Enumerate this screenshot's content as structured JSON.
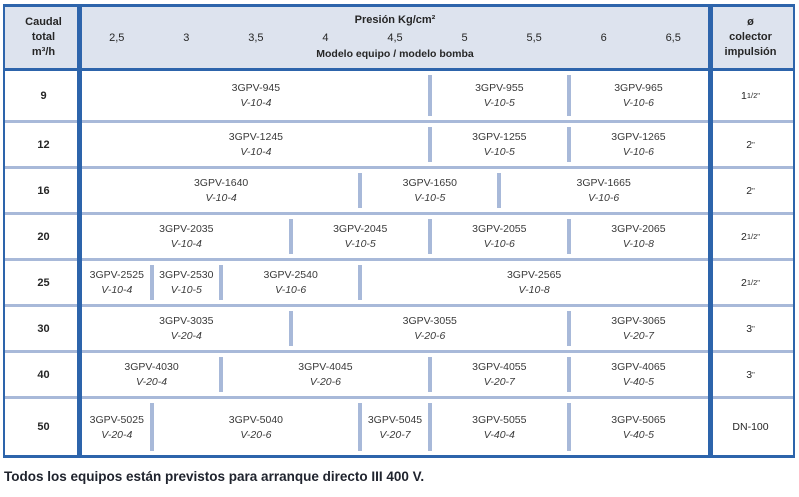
{
  "colors": {
    "border-dark": "#2d64ab",
    "separator-light": "#a8b9d9",
    "header-bg": "#dde3ee",
    "text-dark": "#262626",
    "footer-text": "#20242e"
  },
  "table": {
    "header": {
      "flow_title_lines": [
        "Caudal",
        "total",
        "m³/h"
      ],
      "pressure_title": "Presión Kg/cm²",
      "pressure_values": [
        "2,5",
        "3",
        "3,5",
        "4",
        "4,5",
        "5",
        "5,5",
        "6",
        "6,5"
      ],
      "model_subtitle": "Modelo equipo / modelo bomba",
      "collector_title_lines": [
        "ø",
        "colector",
        "impulsión"
      ]
    },
    "rows": [
      {
        "flow": "9",
        "collector": {
          "base": "1",
          "sup": "1/2\""
        },
        "cells": [
          {
            "span": 5,
            "model": "3GPV-945",
            "pump": "V-10-4"
          },
          {
            "span": 2,
            "model": "3GPV-955",
            "pump": "V-10-5"
          },
          {
            "span": 2,
            "model": "3GPV-965",
            "pump": "V-10-6"
          }
        ]
      },
      {
        "flow": "12",
        "collector": {
          "base": "2",
          "sup": "\""
        },
        "cells": [
          {
            "span": 5,
            "model": "3GPV-1245",
            "pump": "V-10-4"
          },
          {
            "span": 2,
            "model": "3GPV-1255",
            "pump": "V-10-5"
          },
          {
            "span": 2,
            "model": "3GPV-1265",
            "pump": "V-10-6"
          }
        ]
      },
      {
        "flow": "16",
        "collector": {
          "base": "2",
          "sup": "\""
        },
        "cells": [
          {
            "span": 4,
            "model": "3GPV-1640",
            "pump": "V-10-4"
          },
          {
            "span": 2,
            "model": "3GPV-1650",
            "pump": "V-10-5"
          },
          {
            "span": 3,
            "model": "3GPV-1665",
            "pump": "V-10-6"
          }
        ]
      },
      {
        "flow": "20",
        "collector": {
          "base": "2",
          "sup": "1/2\""
        },
        "cells": [
          {
            "span": 3,
            "model": "3GPV-2035",
            "pump": "V-10-4"
          },
          {
            "span": 2,
            "model": "3GPV-2045",
            "pump": "V-10-5"
          },
          {
            "span": 2,
            "model": "3GPV-2055",
            "pump": "V-10-6"
          },
          {
            "span": 2,
            "model": "3GPV-2065",
            "pump": "V-10-8"
          }
        ]
      },
      {
        "flow": "25",
        "collector": {
          "base": "2",
          "sup": "1/2\""
        },
        "cells": [
          {
            "span": 1,
            "model": "3GPV-2525",
            "pump": "V-10-4"
          },
          {
            "span": 1,
            "model": "3GPV-2530",
            "pump": "V-10-5"
          },
          {
            "span": 2,
            "model": "3GPV-2540",
            "pump": "V-10-6"
          },
          {
            "span": 5,
            "model": "3GPV-2565",
            "pump": "V-10-8"
          }
        ]
      },
      {
        "flow": "30",
        "collector": {
          "base": "3",
          "sup": "\""
        },
        "cells": [
          {
            "span": 3,
            "model": "3GPV-3035",
            "pump": "V-20-4"
          },
          {
            "span": 4,
            "model": "3GPV-3055",
            "pump": "V-20-6"
          },
          {
            "span": 2,
            "model": "3GPV-3065",
            "pump": "V-20-7"
          }
        ]
      },
      {
        "flow": "40",
        "collector": {
          "base": "3",
          "sup": "\""
        },
        "cells": [
          {
            "span": 2,
            "model": "3GPV-4030",
            "pump": "V-20-4"
          },
          {
            "span": 3,
            "model": "3GPV-4045",
            "pump": "V-20-6"
          },
          {
            "span": 2,
            "model": "3GPV-4055",
            "pump": "V-20-7"
          },
          {
            "span": 2,
            "model": "3GPV-4065",
            "pump": "V-40-5"
          }
        ]
      },
      {
        "flow": "50",
        "collector": {
          "base": "DN-100",
          "sup": ""
        },
        "cells": [
          {
            "span": 1,
            "model": "3GPV-5025",
            "pump": "V-20-4"
          },
          {
            "span": 3,
            "model": "3GPV-5040",
            "pump": "V-20-6"
          },
          {
            "span": 1,
            "model": "3GPV-5045",
            "pump": "V-20-7"
          },
          {
            "span": 2,
            "model": "3GPV-5055",
            "pump": "V-40-4"
          },
          {
            "span": 2,
            "model": "3GPV-5065",
            "pump": "V-40-5"
          }
        ]
      }
    ],
    "footer_note": "Todos los equipos están previstos para arranque directo III 400 V."
  }
}
